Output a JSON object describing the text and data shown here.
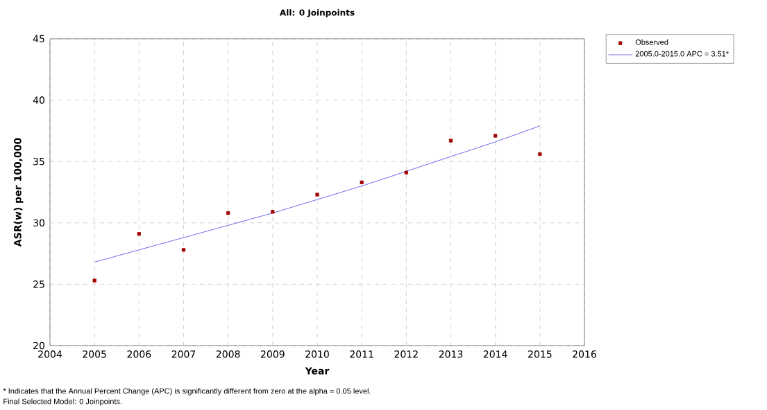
{
  "chart_data": {
    "type": "scatter",
    "title": "All: 0 Joinpoints",
    "xlabel": "Year",
    "ylabel": "ASR(w) per 100,000",
    "x": [
      2005,
      2006,
      2007,
      2008,
      2009,
      2010,
      2011,
      2012,
      2013,
      2014,
      2015
    ],
    "series": [
      {
        "name": "Observed",
        "marker": "square",
        "color": "#a00000",
        "values": [
          25.3,
          29.1,
          27.8,
          30.8,
          30.9,
          32.3,
          33.3,
          34.1,
          36.7,
          37.1,
          35.6
        ]
      },
      {
        "name": "2005.0-2015.0 APC  = 3.51*",
        "type": "line",
        "marker": "none",
        "color": "#5a5ae6",
        "values": [
          26.8,
          27.8,
          28.8,
          29.8,
          30.8,
          31.9,
          33.0,
          34.2,
          35.4,
          36.6,
          37.9
        ]
      }
    ],
    "xlim": [
      2004,
      2016
    ],
    "xticks": [
      2004,
      2005,
      2006,
      2007,
      2008,
      2009,
      2010,
      2011,
      2012,
      2013,
      2014,
      2015,
      2016
    ],
    "ylim": [
      20,
      45
    ],
    "yticks": [
      20,
      25,
      30,
      35,
      40,
      45
    ],
    "grid": true,
    "legend": "top right",
    "annotations": [
      "* Indicates that the Annual Percent Change (APC) is significantly different from zero at the alpha = 0.05 level.",
      "Final Selected Model: 0 Joinpoints."
    ]
  }
}
